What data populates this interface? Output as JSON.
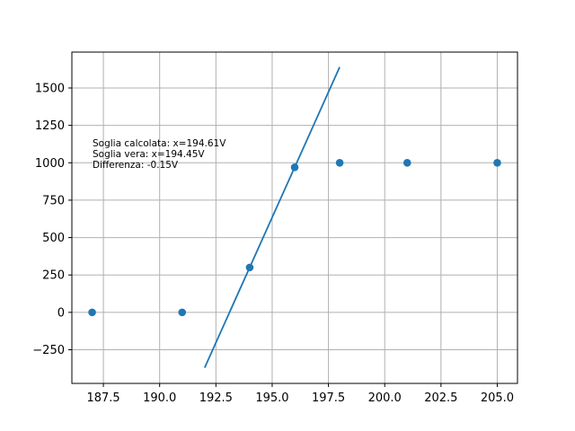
{
  "chart_data": {
    "type": "scatter",
    "title": "",
    "xlabel": "",
    "ylabel": "",
    "xlim": [
      186.1,
      205.9
    ],
    "ylim": [
      -475,
      1740
    ],
    "grid": true,
    "x_ticks": [
      187.5,
      190.0,
      192.5,
      195.0,
      197.5,
      200.0,
      202.5,
      205.0
    ],
    "x_tick_labels": [
      "187.5",
      "190.0",
      "192.5",
      "195.0",
      "197.5",
      "200.0",
      "202.5",
      "205.0"
    ],
    "y_ticks": [
      -250,
      0,
      250,
      500,
      750,
      1000,
      1250,
      1500
    ],
    "y_tick_labels": [
      "−250",
      "0",
      "250",
      "500",
      "750",
      "1000",
      "1250",
      "1500"
    ],
    "series": [
      {
        "kind": "scatter",
        "x": [
          187,
          191,
          194,
          196,
          198,
          201,
          205
        ],
        "y": [
          0,
          0,
          300,
          970,
          1000,
          1000,
          1000
        ]
      },
      {
        "kind": "line",
        "x": [
          192,
          198
        ],
        "y": [
          -370,
          1640
        ]
      }
    ],
    "color": "#1f77b4",
    "annotation": [
      "Soglia calcolata: x=194.61V",
      "Soglia vera: x=194.45V",
      "Differenza: -0.15V"
    ]
  }
}
